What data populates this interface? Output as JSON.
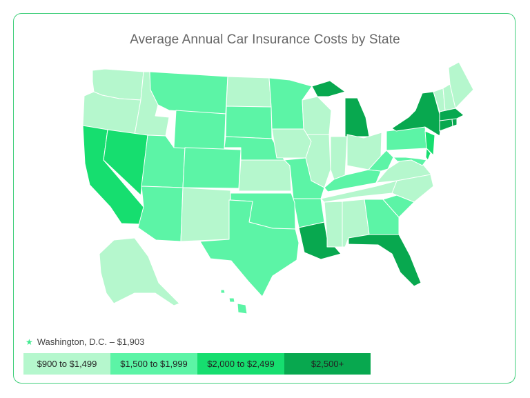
{
  "title": "Average Annual Car Insurance Costs by State",
  "note": {
    "star": "★",
    "text": "Washington, D.C. – $1,903"
  },
  "colors": {
    "tier1": "#b5f7cd",
    "tier2": "#5cf4a6",
    "tier3": "#16de6f",
    "tier4": "#08a84f",
    "border": "#ffffff",
    "card_border": "#3fcf7a"
  },
  "legend": [
    {
      "label": "$900 to $1,499",
      "tier": "tier1"
    },
    {
      "label": "$1,500 to $1,999",
      "tier": "tier2"
    },
    {
      "label": "$2,000 to $2,499",
      "tier": "tier3"
    },
    {
      "label": "$2,500+",
      "tier": "tier4"
    }
  ],
  "chart_data": {
    "type": "choropleth",
    "title": "Average Annual Car Insurance Costs by State",
    "bins": [
      "$900 to $1,499",
      "$1,500 to $1,999",
      "$2,000 to $2,499",
      "$2,500+"
    ],
    "annotation": "Washington, D.C. – $1,903",
    "states": {
      "WA": "$900 to $1,499",
      "OR": "$900 to $1,499",
      "ID": "$900 to $1,499",
      "MT": "$1,500 to $1,999",
      "ND": "$900 to $1,499",
      "SD": "$1,500 to $1,999",
      "MN": "$1,500 to $1,999",
      "WI": "$900 to $1,499",
      "MI": "$2,500+",
      "CA": "$2,000 to $2,499",
      "NV": "$2,000 to $2,499",
      "UT": "$1,500 to $1,999",
      "WY": "$1,500 to $1,999",
      "CO": "$1,500 to $1,999",
      "NE": "$1,500 to $1,999",
      "IA": "$900 to $1,499",
      "IL": "$900 to $1,499",
      "IN": "$900 to $1,499",
      "OH": "$900 to $1,499",
      "AZ": "$1,500 to $1,999",
      "NM": "$900 to $1,499",
      "KS": "$900 to $1,499",
      "MO": "$1,500 to $1,999",
      "KY": "$1,500 to $1,999",
      "WV": "$1,500 to $1,999",
      "VA": "$900 to $1,499",
      "NC": "$900 to $1,499",
      "TN": "$900 to $1,499",
      "AR": "$1,500 to $1,999",
      "OK": "$1,500 to $1,999",
      "TX": "$1,500 to $1,999",
      "LA": "$2,500+",
      "MS": "$900 to $1,499",
      "AL": "$900 to $1,499",
      "GA": "$1,500 to $1,999",
      "SC": "$1,500 to $1,999",
      "FL": "$2,500+",
      "PA": "$1,500 to $1,999",
      "NY": "$2,500+",
      "NJ": "$2,000 to $2,499",
      "DE": "$2,000 to $2,499",
      "MD": "$1,500 to $1,999",
      "CT": "$2,500+",
      "RI": "$2,500+",
      "MA": "$2,500+",
      "VT": "$900 to $1,499",
      "NH": "$900 to $1,499",
      "ME": "$900 to $1,499",
      "AK": "$900 to $1,499",
      "HI": "$1,500 to $1,999"
    }
  }
}
